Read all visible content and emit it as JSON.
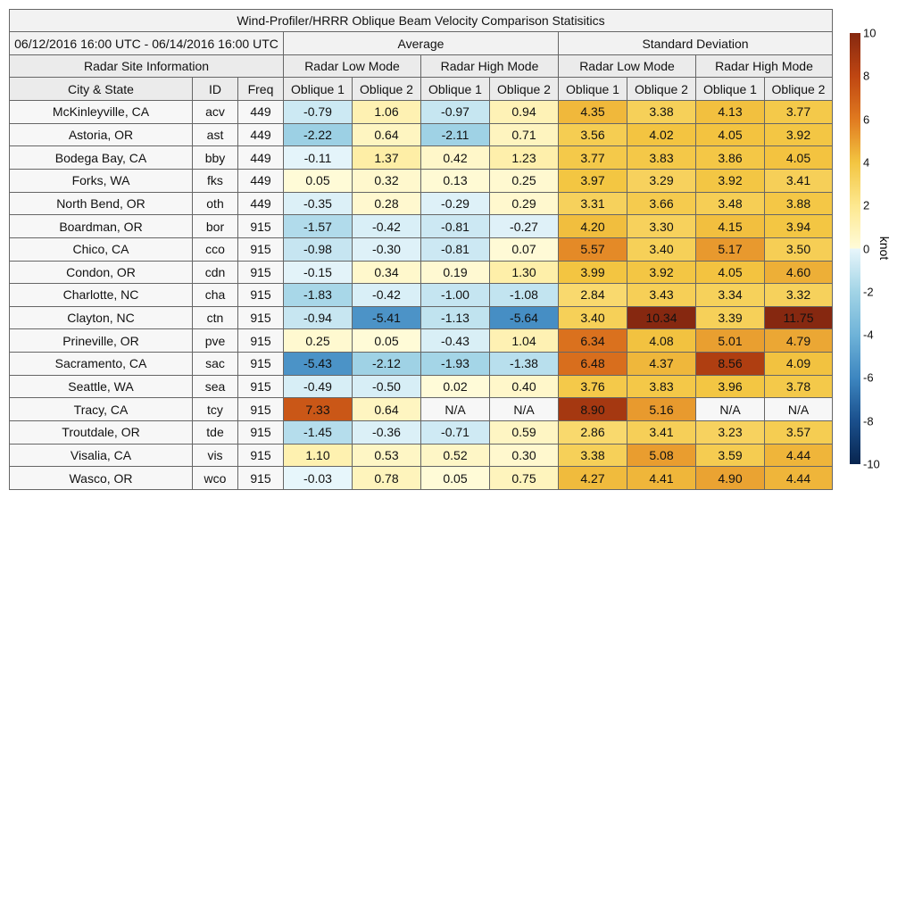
{
  "title": "Wind-Profiler/HRRR Oblique Beam Velocity Comparison Statisitics",
  "header": {
    "period": "06/12/2016 16:00 UTC - 06/14/2016 16:00 UTC",
    "groups": [
      "Average",
      "Standard Deviation"
    ],
    "site_info": "Radar Site Information",
    "modes": [
      "Radar Low Mode",
      "Radar High Mode",
      "Radar Low Mode",
      "Radar High Mode"
    ],
    "columns": [
      "City & State",
      "ID",
      "Freq",
      "Oblique 1",
      "Oblique 2",
      "Oblique 1",
      "Oblique 2",
      "Oblique 1",
      "Oblique 2",
      "Oblique 1",
      "Oblique 2"
    ]
  },
  "table": {
    "rows": [
      [
        "McKinleyville, CA",
        "acv",
        "449",
        "-0.79",
        "1.06",
        "-0.97",
        "0.94",
        "4.35",
        "3.38",
        "4.13",
        "3.77"
      ],
      [
        "Astoria, OR",
        "ast",
        "449",
        "-2.22",
        "0.64",
        "-2.11",
        "0.71",
        "3.56",
        "4.02",
        "4.05",
        "3.92"
      ],
      [
        "Bodega Bay, CA",
        "bby",
        "449",
        "-0.11",
        "1.37",
        "0.42",
        "1.23",
        "3.77",
        "3.83",
        "3.86",
        "4.05"
      ],
      [
        "Forks, WA",
        "fks",
        "449",
        "0.05",
        "0.32",
        "0.13",
        "0.25",
        "3.97",
        "3.29",
        "3.92",
        "3.41"
      ],
      [
        "North Bend, OR",
        "oth",
        "449",
        "-0.35",
        "0.28",
        "-0.29",
        "0.29",
        "3.31",
        "3.66",
        "3.48",
        "3.88"
      ],
      [
        "Boardman, OR",
        "bor",
        "915",
        "-1.57",
        "-0.42",
        "-0.81",
        "-0.27",
        "4.20",
        "3.30",
        "4.15",
        "3.94"
      ],
      [
        "Chico, CA",
        "cco",
        "915",
        "-0.98",
        "-0.30",
        "-0.81",
        "0.07",
        "5.57",
        "3.40",
        "5.17",
        "3.50"
      ],
      [
        "Condon, OR",
        "cdn",
        "915",
        "-0.15",
        "0.34",
        "0.19",
        "1.30",
        "3.99",
        "3.92",
        "4.05",
        "4.60"
      ],
      [
        "Charlotte, NC",
        "cha",
        "915",
        "-1.83",
        "-0.42",
        "-1.00",
        "-1.08",
        "2.84",
        "3.43",
        "3.34",
        "3.32"
      ],
      [
        "Clayton, NC",
        "ctn",
        "915",
        "-0.94",
        "-5.41",
        "-1.13",
        "-5.64",
        "3.40",
        "10.34",
        "3.39",
        "11.75"
      ],
      [
        "Prineville, OR",
        "pve",
        "915",
        "0.25",
        "0.05",
        "-0.43",
        "1.04",
        "6.34",
        "4.08",
        "5.01",
        "4.79"
      ],
      [
        "Sacramento, CA",
        "sac",
        "915",
        "-5.43",
        "-2.12",
        "-1.93",
        "-1.38",
        "6.48",
        "4.37",
        "8.56",
        "4.09"
      ],
      [
        "Seattle, WA",
        "sea",
        "915",
        "-0.49",
        "-0.50",
        "0.02",
        "0.40",
        "3.76",
        "3.83",
        "3.96",
        "3.78"
      ],
      [
        "Tracy, CA",
        "tcy",
        "915",
        "7.33",
        "0.64",
        "N/A",
        "N/A",
        "8.90",
        "5.16",
        "N/A",
        "N/A"
      ],
      [
        "Troutdale, OR",
        "tde",
        "915",
        "-1.45",
        "-0.36",
        "-0.71",
        "0.59",
        "2.86",
        "3.41",
        "3.23",
        "3.57"
      ],
      [
        "Visalia, CA",
        "vis",
        "915",
        "1.10",
        "0.53",
        "0.52",
        "0.30",
        "3.38",
        "5.08",
        "3.59",
        "4.44"
      ],
      [
        "Wasco, OR",
        "wco",
        "915",
        "-0.03",
        "0.78",
        "0.05",
        "0.75",
        "4.27",
        "4.41",
        "4.90",
        "4.44"
      ]
    ]
  },
  "colorbar": {
    "label": "knot",
    "lim": [
      -10,
      10
    ],
    "ticks": [
      -10,
      -8,
      -6,
      -4,
      -2,
      0,
      2,
      4,
      6,
      8,
      10
    ]
  }
}
